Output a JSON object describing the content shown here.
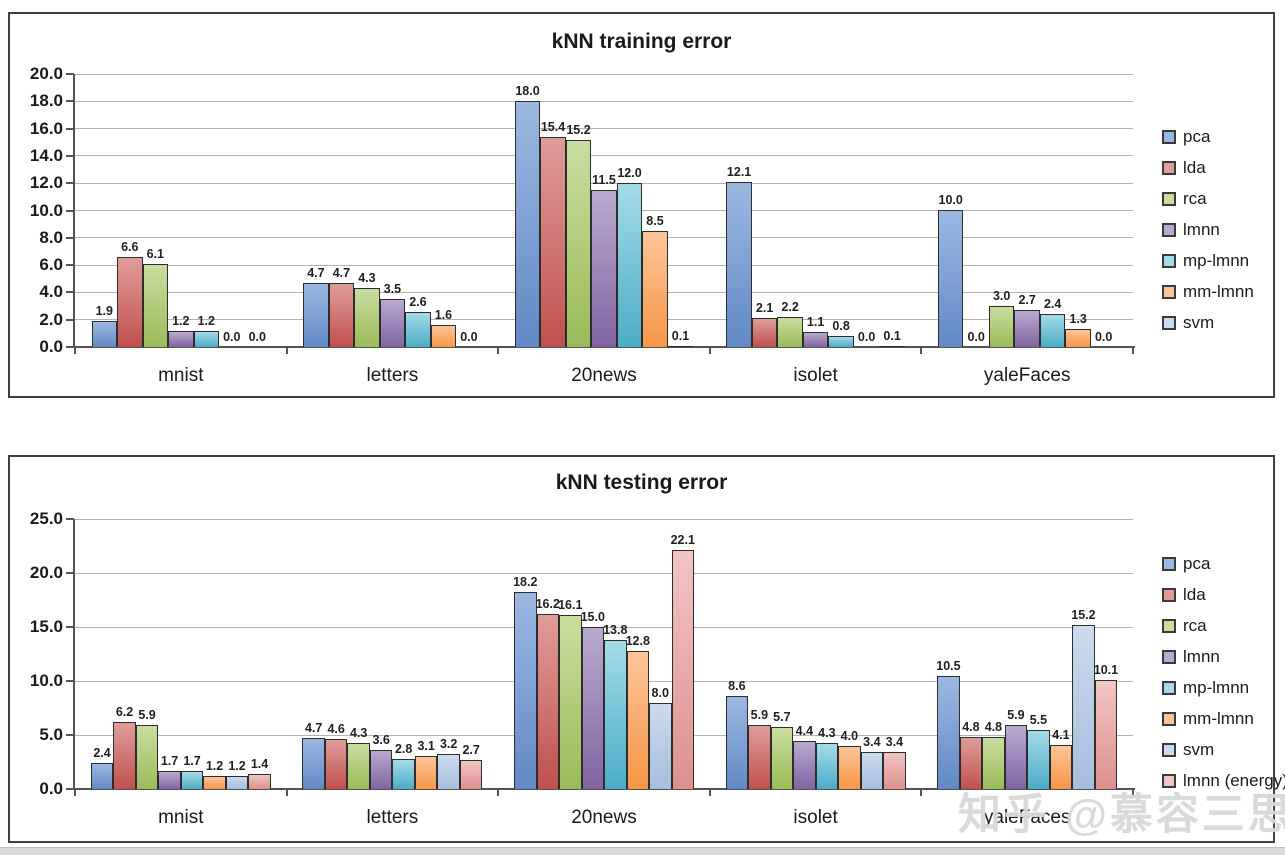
{
  "watermark_text": "知乎 @慕容三思",
  "chart_data": [
    {
      "type": "bar",
      "title": "kNN training error",
      "categories": [
        "mnist",
        "letters",
        "20news",
        "isolet",
        "yaleFaces"
      ],
      "series": [
        {
          "name": "pca",
          "values": [
            1.9,
            4.7,
            18.0,
            12.1,
            10.0
          ]
        },
        {
          "name": "lda",
          "values": [
            6.6,
            4.7,
            15.4,
            2.1,
            0.0
          ]
        },
        {
          "name": "rca",
          "values": [
            6.1,
            4.3,
            15.2,
            2.2,
            3.0
          ]
        },
        {
          "name": "lmnn",
          "values": [
            1.2,
            3.5,
            11.5,
            1.1,
            2.7
          ]
        },
        {
          "name": "mp-lmnn",
          "values": [
            1.2,
            2.6,
            12.0,
            0.8,
            2.4
          ]
        },
        {
          "name": "mm-lmnn",
          "values": [
            0.0,
            1.6,
            8.5,
            0.0,
            1.3
          ]
        },
        {
          "name": "svm",
          "values": [
            0.0,
            0.0,
            0.1,
            0.1,
            0.0
          ]
        }
      ],
      "ylim": [
        0,
        20
      ],
      "ytick_step": 2,
      "ytick_labels": [
        "0.0",
        "2.0",
        "4.0",
        "6.0",
        "8.0",
        "10.0",
        "12.0",
        "14.0",
        "16.0",
        "18.0",
        "20.0"
      ],
      "grid": true,
      "legend_position": "right",
      "value_labels": true
    },
    {
      "type": "bar",
      "title": "kNN testing error",
      "categories": [
        "mnist",
        "letters",
        "20news",
        "isolet",
        "yaleFaces"
      ],
      "series": [
        {
          "name": "pca",
          "values": [
            2.4,
            4.7,
            18.2,
            8.6,
            10.5
          ]
        },
        {
          "name": "lda",
          "values": [
            6.2,
            4.6,
            16.2,
            5.9,
            4.8
          ]
        },
        {
          "name": "rca",
          "values": [
            5.9,
            4.3,
            16.1,
            5.7,
            4.8
          ]
        },
        {
          "name": "lmnn",
          "values": [
            1.7,
            3.6,
            15.0,
            4.4,
            5.9
          ]
        },
        {
          "name": "mp-lmnn",
          "values": [
            1.7,
            2.8,
            13.8,
            4.3,
            5.5
          ]
        },
        {
          "name": "mm-lmnn",
          "values": [
            1.2,
            3.1,
            12.8,
            4.0,
            4.1
          ]
        },
        {
          "name": "svm",
          "values": [
            1.2,
            3.2,
            8.0,
            3.4,
            15.2
          ]
        },
        {
          "name": "lmnn (energy)",
          "values": [
            1.4,
            2.7,
            22.1,
            3.4,
            10.1
          ]
        }
      ],
      "ylim": [
        0,
        25
      ],
      "ytick_step": 5,
      "ytick_labels": [
        "0.0",
        "5.0",
        "10.0",
        "15.0",
        "20.0",
        "25.0"
      ],
      "grid": true,
      "legend_position": "right",
      "value_labels": true
    }
  ],
  "series_colors": {
    "pca": {
      "top": "#9bb8e2",
      "bottom": "#6289c5"
    },
    "lda": {
      "top": "#e09d9a",
      "bottom": "#c0504d"
    },
    "rca": {
      "top": "#cadd9f",
      "bottom": "#9bbb59"
    },
    "lmnn": {
      "top": "#baaad0",
      "bottom": "#8064a2"
    },
    "mp-lmnn": {
      "top": "#a5dbe8",
      "bottom": "#4bacc6"
    },
    "mm-lmnn": {
      "top": "#fcc49a",
      "bottom": "#f79646"
    },
    "svm": {
      "top": "#ccdaee",
      "bottom": "#a6bedd"
    },
    "lmnn (energy)": {
      "top": "#f2c5c4",
      "bottom": "#dd908e"
    }
  }
}
